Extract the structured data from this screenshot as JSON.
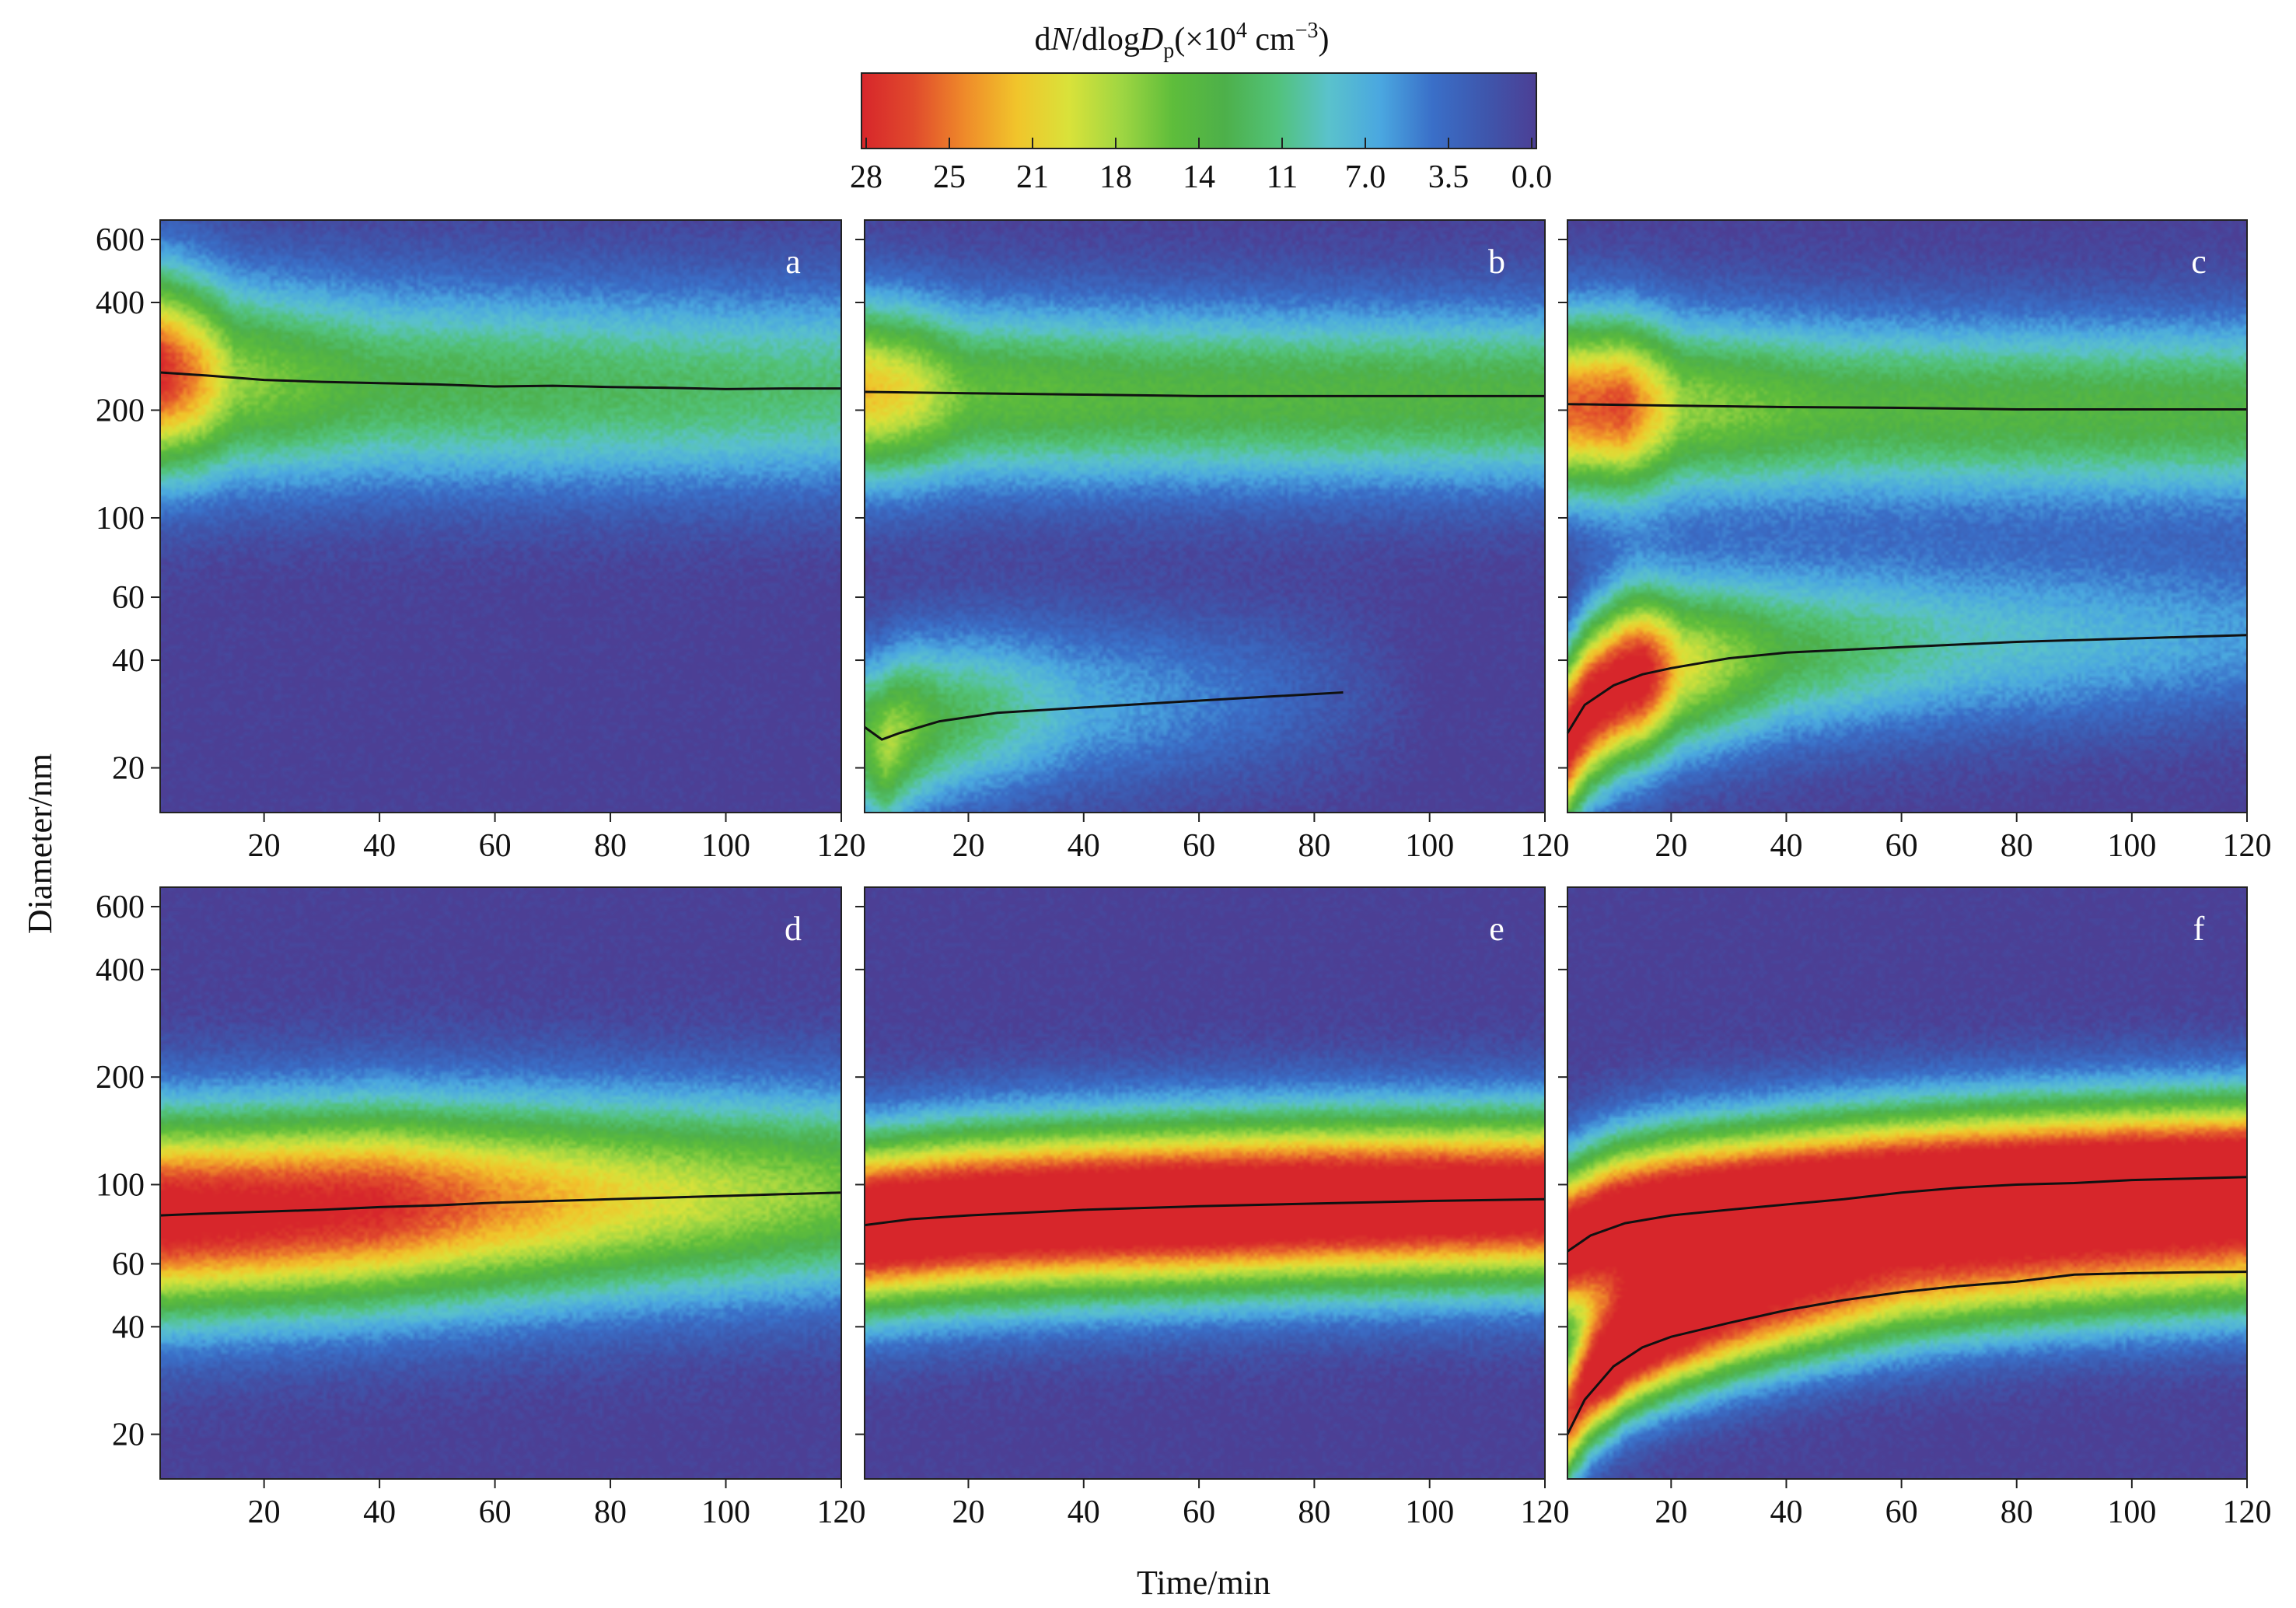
{
  "figure": {
    "x_axis_title": "Time/min",
    "y_axis_title": "Diameter/nm"
  },
  "colorbar": {
    "title_prefix": "d",
    "title_N": "N",
    "title_mid": "/dlog",
    "title_D": "D",
    "title_sub": "p",
    "title_unit": "(×10",
    "title_exp": "4",
    "title_unit2": " cm",
    "title_exp2": "−3",
    "title_close": ")",
    "tick_labels": [
      "28",
      "25",
      "21",
      "18",
      "14",
      "11",
      "7.0",
      "3.5",
      "0.0"
    ],
    "range": [
      28,
      0
    ],
    "colors": [
      "#d7262b",
      "#e04a2c",
      "#ef8b2a",
      "#f1c52b",
      "#d9e23a",
      "#9fd642",
      "#5ebd3b",
      "#4db04a",
      "#52c27a",
      "#5ac2cc",
      "#4aa7e0",
      "#3a6fc8",
      "#3e57ad",
      "#4c3f95"
    ]
  },
  "chart_data": [
    {
      "type": "heatmap",
      "panel": "a",
      "xlabel": "",
      "ylabel": "Diameter/nm",
      "xlim": [
        2,
        120
      ],
      "ylim": [
        15,
        680
      ],
      "yscale": "log",
      "x_ticks": [
        20,
        40,
        60,
        80,
        100,
        120
      ],
      "y_ticks": [
        20,
        40,
        60,
        100,
        200,
        400,
        600
      ],
      "modes": [
        {
          "peak_diameter": [
            [
              2,
              255
            ],
            [
              20,
              240
            ],
            [
              40,
              235
            ],
            [
              60,
              232
            ],
            [
              80,
              230
            ],
            [
              100,
              228
            ],
            [
              120,
              230
            ]
          ],
          "peak_value": [
            [
              2,
              28
            ],
            [
              8,
              24
            ],
            [
              15,
              17
            ],
            [
              40,
              13
            ],
            [
              120,
              11
            ]
          ],
          "spread": 0.2
        }
      ],
      "mode_lines": [
        [
          [
            2,
            255
          ],
          [
            10,
            250
          ],
          [
            20,
            243
          ],
          [
            30,
            240
          ],
          [
            40,
            238
          ],
          [
            50,
            236
          ],
          [
            60,
            233
          ],
          [
            70,
            234
          ],
          [
            80,
            232
          ],
          [
            90,
            231
          ],
          [
            100,
            229
          ],
          [
            110,
            230
          ],
          [
            120,
            230
          ]
        ]
      ]
    },
    {
      "type": "heatmap",
      "panel": "b",
      "xlabel": "",
      "ylabel": "",
      "xlim": [
        2,
        120
      ],
      "ylim": [
        15,
        680
      ],
      "yscale": "log",
      "x_ticks": [
        20,
        40,
        60,
        80,
        100,
        120
      ],
      "y_ticks": [
        20,
        40,
        60,
        100,
        200,
        400,
        600
      ],
      "modes": [
        {
          "peak_diameter": [
            [
              2,
              225
            ],
            [
              40,
              220
            ],
            [
              80,
              218
            ],
            [
              120,
              218
            ]
          ],
          "peak_value": [
            [
              2,
              22
            ],
            [
              10,
              20
            ],
            [
              20,
              15
            ],
            [
              50,
              14
            ],
            [
              120,
              13.5
            ]
          ],
          "spread": 0.18
        },
        {
          "peak_diameter": [
            [
              2,
              24
            ],
            [
              5,
              23
            ],
            [
              10,
              26
            ],
            [
              20,
              28
            ],
            [
              40,
              30
            ],
            [
              60,
              31
            ],
            [
              80,
              32
            ],
            [
              90,
              32
            ]
          ],
          "peak_value": [
            [
              2,
              14
            ],
            [
              6,
              18
            ],
            [
              15,
              13
            ],
            [
              40,
              7
            ],
            [
              70,
              4
            ],
            [
              90,
              1.5
            ],
            [
              100,
              0
            ]
          ],
          "spread": 0.17
        }
      ],
      "mode_lines": [
        [
          [
            2,
            225
          ],
          [
            20,
            223
          ],
          [
            40,
            221
          ],
          [
            60,
            219
          ],
          [
            80,
            219
          ],
          [
            100,
            219
          ],
          [
            120,
            219
          ]
        ],
        [
          [
            2,
            26
          ],
          [
            5,
            24
          ],
          [
            8,
            25
          ],
          [
            15,
            27
          ],
          [
            25,
            28.5
          ],
          [
            40,
            29.5
          ],
          [
            55,
            30.5
          ],
          [
            70,
            31.5
          ],
          [
            85,
            32.5
          ]
        ]
      ]
    },
    {
      "type": "heatmap",
      "panel": "c",
      "xlabel": "",
      "ylabel": "",
      "xlim": [
        2,
        120
      ],
      "ylim": [
        15,
        680
      ],
      "yscale": "log",
      "x_ticks": [
        20,
        40,
        60,
        80,
        100,
        120
      ],
      "y_ticks": [
        20,
        40,
        60,
        100,
        200,
        400,
        600
      ],
      "modes": [
        {
          "peak_diameter": [
            [
              2,
              205
            ],
            [
              40,
              203
            ],
            [
              80,
              200
            ],
            [
              120,
              200
            ]
          ],
          "peak_value": [
            [
              2,
              25
            ],
            [
              12,
              26
            ],
            [
              22,
              17
            ],
            [
              50,
              14
            ],
            [
              120,
              13.5
            ]
          ],
          "spread": 0.18
        },
        {
          "peak_diameter": [
            [
              2,
              24
            ],
            [
              6,
              30
            ],
            [
              12,
              35
            ],
            [
              20,
              38
            ],
            [
              40,
              42
            ],
            [
              60,
              44
            ],
            [
              80,
              45
            ],
            [
              100,
              46
            ],
            [
              120,
              47
            ]
          ],
          "peak_value": [
            [
              2,
              30
            ],
            [
              15,
              30
            ],
            [
              22,
              20
            ],
            [
              40,
              13
            ],
            [
              70,
              9
            ],
            [
              120,
              6
            ]
          ],
          "spread": 0.17
        }
      ],
      "mode_lines": [
        [
          [
            2,
            208
          ],
          [
            20,
            206
          ],
          [
            40,
            204
          ],
          [
            60,
            203
          ],
          [
            80,
            201
          ],
          [
            100,
            201
          ],
          [
            120,
            201
          ]
        ],
        [
          [
            2,
            25
          ],
          [
            5,
            30
          ],
          [
            10,
            34
          ],
          [
            15,
            36.5
          ],
          [
            20,
            38
          ],
          [
            30,
            40.5
          ],
          [
            40,
            42
          ],
          [
            60,
            43.5
          ],
          [
            80,
            45
          ],
          [
            100,
            46
          ],
          [
            120,
            47
          ]
        ]
      ]
    },
    {
      "type": "heatmap",
      "panel": "d",
      "xlabel": "",
      "ylabel": "Diameter/nm",
      "xlim": [
        2,
        120
      ],
      "ylim": [
        15,
        680
      ],
      "yscale": "log",
      "x_ticks": [
        20,
        40,
        60,
        80,
        100,
        120
      ],
      "y_ticks": [
        20,
        40,
        60,
        100,
        200,
        400,
        600
      ],
      "modes": [
        {
          "peak_diameter": [
            [
              2,
              82
            ],
            [
              20,
              84
            ],
            [
              40,
              87
            ],
            [
              60,
              89
            ],
            [
              80,
              91
            ],
            [
              100,
              93
            ],
            [
              120,
              95
            ]
          ],
          "peak_value": [
            [
              2,
              30
            ],
            [
              40,
              28
            ],
            [
              60,
              24
            ],
            [
              85,
              20
            ],
            [
              120,
              16
            ]
          ],
          "spread": 0.2
        }
      ],
      "mode_lines": [
        [
          [
            2,
            82
          ],
          [
            10,
            83
          ],
          [
            20,
            84
          ],
          [
            30,
            85
          ],
          [
            40,
            86.5
          ],
          [
            50,
            87.5
          ],
          [
            60,
            89
          ],
          [
            70,
            90
          ],
          [
            80,
            91
          ],
          [
            90,
            92
          ],
          [
            100,
            93
          ],
          [
            110,
            94
          ],
          [
            120,
            95
          ]
        ]
      ]
    },
    {
      "type": "heatmap",
      "panel": "e",
      "xlabel": "Time/min",
      "ylabel": "",
      "xlim": [
        2,
        120
      ],
      "ylim": [
        15,
        680
      ],
      "yscale": "log",
      "x_ticks": [
        20,
        40,
        60,
        80,
        100,
        120
      ],
      "y_ticks": [
        20,
        40,
        60,
        100,
        200,
        400,
        600
      ],
      "modes": [
        {
          "peak_diameter": [
            [
              2,
              77
            ],
            [
              20,
              82
            ],
            [
              40,
              85
            ],
            [
              60,
              87
            ],
            [
              80,
              89
            ],
            [
              100,
              90
            ],
            [
              120,
              91
            ]
          ],
          "peak_value": [
            [
              2,
              34
            ],
            [
              60,
              34
            ],
            [
              120,
              32
            ]
          ],
          "spread": 0.17
        }
      ],
      "mode_lines": [
        [
          [
            2,
            77
          ],
          [
            10,
            80
          ],
          [
            20,
            82
          ],
          [
            30,
            83.5
          ],
          [
            40,
            85
          ],
          [
            60,
            87
          ],
          [
            80,
            88.5
          ],
          [
            100,
            90
          ],
          [
            120,
            91
          ]
        ]
      ]
    },
    {
      "type": "heatmap",
      "panel": "f",
      "xlabel": "",
      "ylabel": "",
      "xlim": [
        2,
        120
      ],
      "ylim": [
        15,
        680
      ],
      "yscale": "log",
      "x_ticks": [
        20,
        40,
        60,
        80,
        100,
        120
      ],
      "y_ticks": [
        20,
        40,
        60,
        100,
        200,
        400,
        600
      ],
      "modes": [
        {
          "peak_diameter": [
            [
              2,
              68
            ],
            [
              10,
              78
            ],
            [
              20,
              84
            ],
            [
              40,
              90
            ],
            [
              60,
              96
            ],
            [
              80,
              100
            ],
            [
              100,
              103
            ],
            [
              120,
              105
            ]
          ],
          "peak_value": [
            [
              2,
              32
            ],
            [
              40,
              34
            ],
            [
              120,
              34
            ]
          ],
          "spread": 0.16
        },
        {
          "peak_diameter": [
            [
              2,
              22
            ],
            [
              6,
              28
            ],
            [
              12,
              34
            ],
            [
              20,
              38
            ],
            [
              40,
              45
            ],
            [
              60,
              50
            ],
            [
              80,
              54
            ],
            [
              100,
              56
            ],
            [
              120,
              57
            ]
          ],
          "peak_value": [
            [
              2,
              26
            ],
            [
              10,
              32
            ],
            [
              30,
              24
            ],
            [
              60,
              16
            ],
            [
              120,
              12
            ]
          ],
          "spread": 0.13
        }
      ],
      "mode_lines": [
        [
          [
            2,
            65
          ],
          [
            6,
            72
          ],
          [
            12,
            78
          ],
          [
            20,
            82
          ],
          [
            30,
            85
          ],
          [
            40,
            88
          ],
          [
            50,
            91
          ],
          [
            60,
            95
          ],
          [
            70,
            98
          ],
          [
            80,
            100
          ],
          [
            90,
            101
          ],
          [
            100,
            103
          ],
          [
            110,
            104
          ],
          [
            120,
            105
          ]
        ],
        [
          [
            2,
            20
          ],
          [
            5,
            25
          ],
          [
            10,
            31
          ],
          [
            15,
            35
          ],
          [
            20,
            37.5
          ],
          [
            30,
            41
          ],
          [
            40,
            44.5
          ],
          [
            50,
            47.5
          ],
          [
            60,
            50
          ],
          [
            70,
            52
          ],
          [
            80,
            53.5
          ],
          [
            90,
            56
          ],
          [
            100,
            56.5
          ],
          [
            110,
            56.8
          ],
          [
            120,
            57
          ]
        ]
      ]
    }
  ]
}
